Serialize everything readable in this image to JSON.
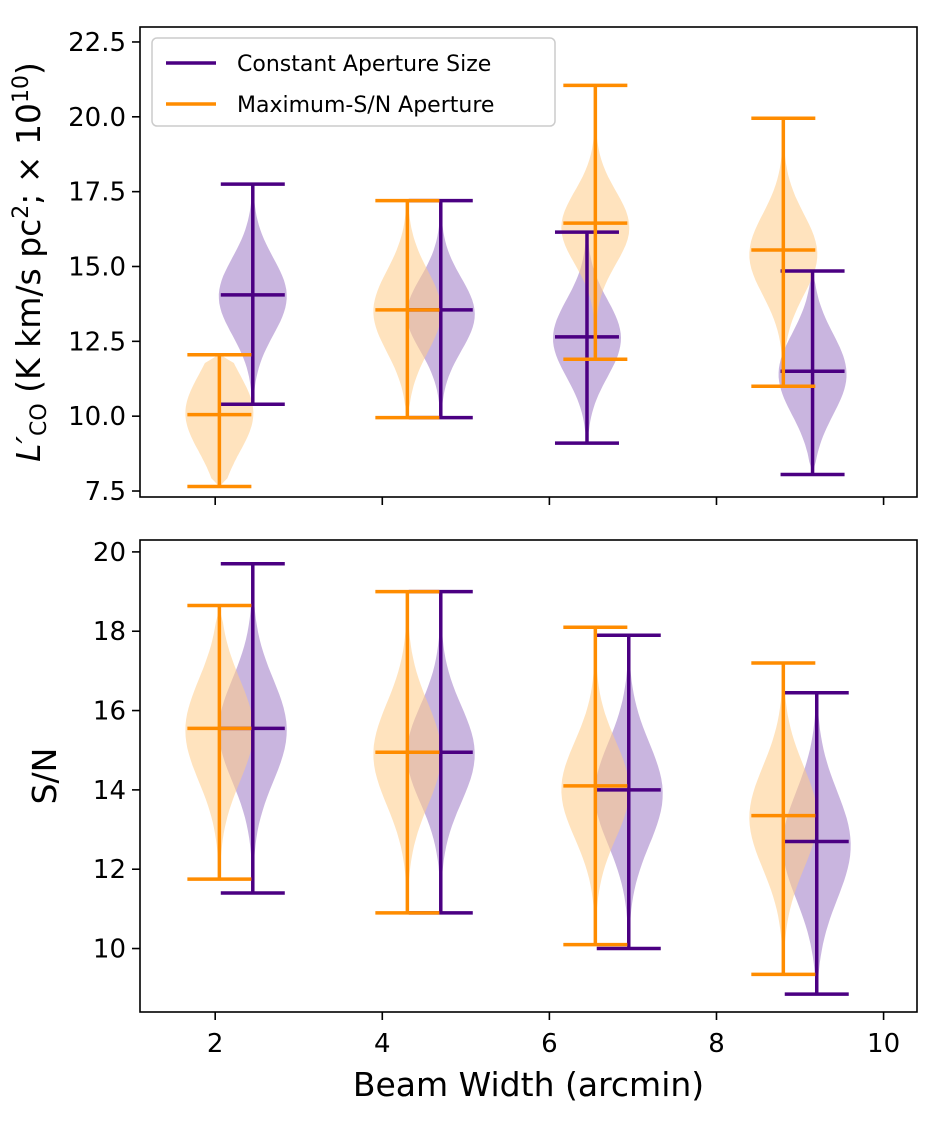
{
  "chart_data": [
    {
      "type": "violin",
      "ylabel": {
        "main": "L′",
        "sub": "CO",
        "unit": " (K km/s pc",
        "sup": "2",
        "mult": ";  × 10",
        "exp": "10",
        "close": ")"
      },
      "xlim": [
        1.1,
        10.4
      ],
      "ylim": [
        7.3,
        23.0
      ],
      "yticks": [
        7.5,
        10.0,
        12.5,
        15.0,
        17.5,
        20.0,
        22.5
      ],
      "ytick_labels": [
        "7.5",
        "10.0",
        "12.5",
        "15.0",
        "17.5",
        "20.0",
        "22.5"
      ],
      "xticks": [
        2,
        4,
        6,
        8,
        10
      ],
      "show_xtick_labels": false,
      "legend": {
        "placement": "top-left",
        "entries": [
          {
            "label": "Constant Aperture Size",
            "color": "#4b0082"
          },
          {
            "label": "Maximum-S/N Aperture",
            "color": "#ff8c00"
          }
        ]
      },
      "series": [
        {
          "name": "Constant Aperture Size",
          "color": "#4b0082",
          "fill": "#9d78c4",
          "x": [
            2.45,
            4.7,
            6.45,
            9.15
          ],
          "min": [
            10.4,
            9.95,
            9.1,
            8.05
          ],
          "mean": [
            14.05,
            13.55,
            12.65,
            11.5
          ],
          "max": [
            17.75,
            17.2,
            16.15,
            14.85
          ],
          "center": [
            14.0,
            13.4,
            12.6,
            11.4
          ],
          "spread": [
            0.95,
            0.9,
            0.95,
            1.0
          ]
        },
        {
          "name": "Maximum-S/N Aperture",
          "color": "#ff8c00",
          "fill": "#ffcc88",
          "x": [
            2.05,
            4.3,
            6.55,
            8.8
          ],
          "min": [
            7.65,
            9.95,
            11.9,
            11.0
          ],
          "mean": [
            10.05,
            13.55,
            16.45,
            15.55
          ],
          "max": [
            12.05,
            17.2,
            21.05,
            19.95
          ],
          "center": [
            10.1,
            13.5,
            16.3,
            15.4
          ],
          "spread": [
            0.95,
            1.0,
            0.9,
            1.0
          ]
        }
      ]
    },
    {
      "type": "violin",
      "ylabel": "S/N",
      "xlabel": "Beam Width (arcmin)",
      "xlim": [
        1.1,
        10.4
      ],
      "ylim": [
        8.4,
        20.3
      ],
      "yticks": [
        10,
        12,
        14,
        16,
        18,
        20
      ],
      "ytick_labels": [
        "10",
        "12",
        "14",
        "16",
        "18",
        "20"
      ],
      "xticks": [
        2,
        4,
        6,
        8,
        10
      ],
      "xtick_labels": [
        "2",
        "4",
        "6",
        "8",
        "10"
      ],
      "series": [
        {
          "name": "Constant Aperture Size",
          "color": "#4b0082",
          "fill": "#9d78c4",
          "x": [
            2.45,
            4.7,
            6.95,
            9.2
          ],
          "min": [
            11.4,
            10.9,
            10.0,
            8.85
          ],
          "mean": [
            15.55,
            14.95,
            14.0,
            12.7
          ],
          "max": [
            19.7,
            19.0,
            17.9,
            16.45
          ],
          "center": [
            15.5,
            14.9,
            13.9,
            12.6
          ],
          "spread": [
            0.95,
            0.9,
            0.95,
            1.0
          ]
        },
        {
          "name": "Maximum-S/N Aperture",
          "color": "#ff8c00",
          "fill": "#ffcc88",
          "x": [
            2.05,
            4.3,
            6.55,
            8.8
          ],
          "min": [
            11.75,
            10.9,
            10.1,
            9.35
          ],
          "mean": [
            15.55,
            14.95,
            14.1,
            13.35
          ],
          "max": [
            18.65,
            19.0,
            18.1,
            17.2
          ],
          "center": [
            15.5,
            14.9,
            14.0,
            13.3
          ],
          "spread": [
            0.95,
            0.95,
            0.9,
            0.95
          ]
        }
      ]
    }
  ]
}
